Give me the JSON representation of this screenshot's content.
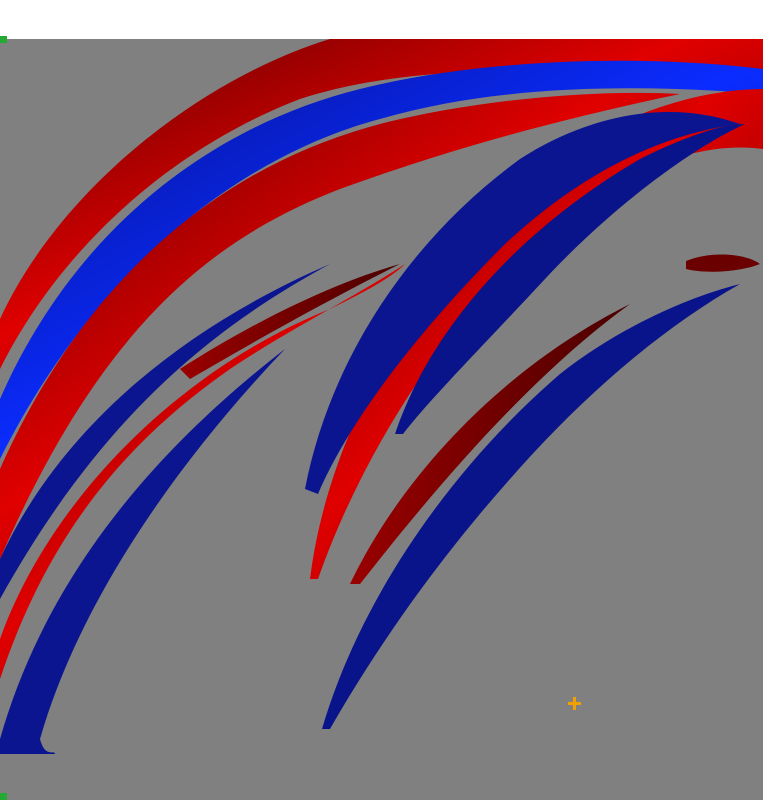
{
  "view": {
    "background_color": "#808080",
    "page_color": "#ffffff",
    "marker_color": "#22aa33",
    "cursor_color": "#f2a000"
  },
  "colors": {
    "positive_bright": "#e00000",
    "positive_dark": "#6e0000",
    "negative_bright": "#0022ff",
    "negative_dark": "#0a0a82"
  }
}
